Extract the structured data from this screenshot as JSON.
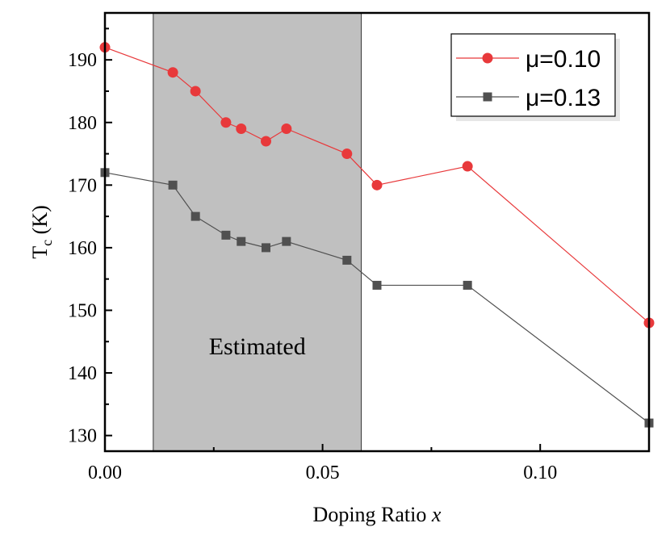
{
  "chart_data": {
    "type": "line",
    "xlabel": "Doping Ratio ",
    "xlabel_var": "x",
    "ylabel": "T",
    "ylabel_sub": "c",
    "ylabel_unit": " (K)",
    "xlim": [
      0,
      0.125
    ],
    "ylim": [
      127.5,
      197.5
    ],
    "xticks": [
      0.0,
      0.05,
      0.1
    ],
    "xtick_labels": [
      "0.00",
      "0.05",
      "0.10"
    ],
    "yticks": [
      130,
      140,
      150,
      160,
      170,
      180,
      190
    ],
    "ytick_labels": [
      "130",
      "140",
      "150",
      "160",
      "170",
      "180",
      "190"
    ],
    "shaded_region": {
      "x": [
        0.0111,
        0.0589
      ],
      "label": "Estimated",
      "color": "#c0c0c0"
    },
    "legend_position": "top-right",
    "series": [
      {
        "name": "μ=0.10",
        "color": "#e8393b",
        "marker": "circle",
        "x": [
          0.0,
          0.0156,
          0.0208,
          0.0278,
          0.0313,
          0.037,
          0.0417,
          0.0556,
          0.0625,
          0.0833,
          0.125
        ],
        "y": [
          192,
          188,
          185,
          180,
          179,
          177,
          179,
          175,
          170,
          173,
          148
        ]
      },
      {
        "name": "μ=0.13",
        "color": "#505050",
        "marker": "square",
        "x": [
          0.0,
          0.0156,
          0.0208,
          0.0278,
          0.0313,
          0.037,
          0.0417,
          0.0556,
          0.0625,
          0.0833,
          0.125
        ],
        "y": [
          172,
          170,
          165,
          162,
          161,
          160,
          161,
          158,
          154,
          154,
          132
        ]
      }
    ]
  }
}
